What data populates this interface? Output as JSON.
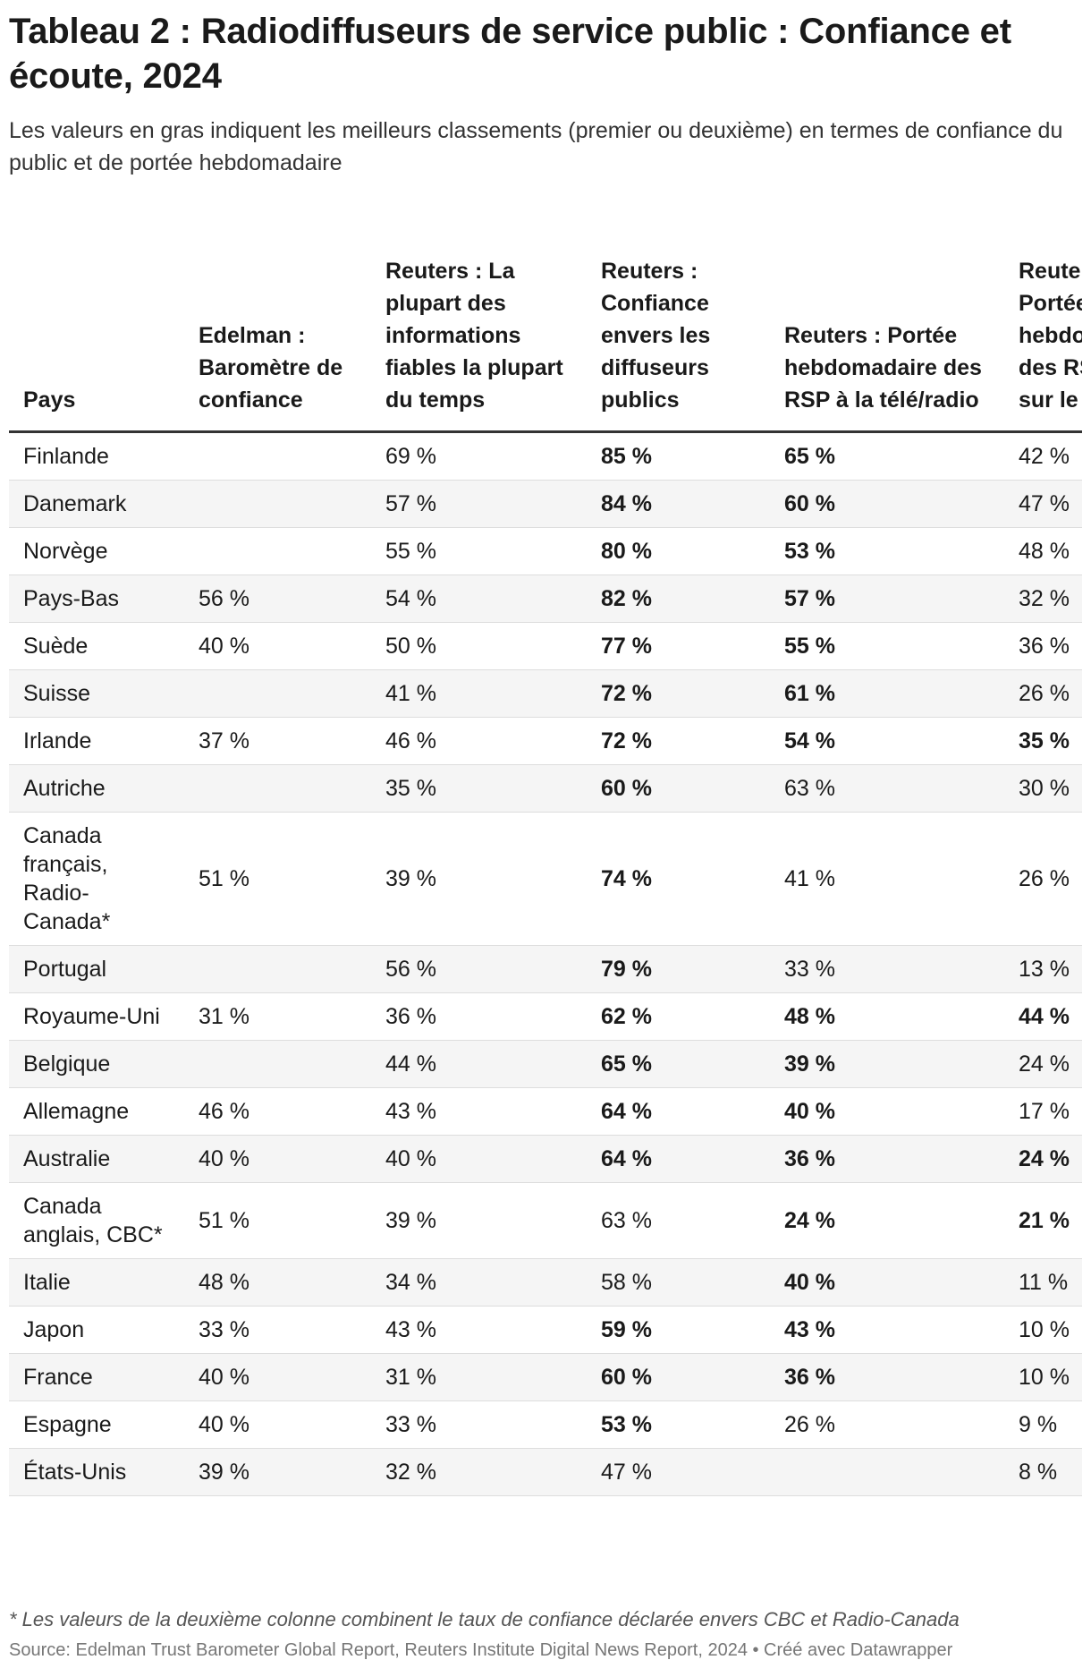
{
  "chart_data": {
    "type": "table",
    "title": "Tableau 2 : Radiodiffuseurs de service public : Confiance et écoute, 2024",
    "subtitle": "Les valeurs en gras indiquent les meilleurs classements (premier ou deuxième) en termes de confiance du public et de portée hebdomadaire",
    "columns": [
      "Pays",
      "Edelman : Baromètre de confiance",
      "Reuters : La plupart des informations fiables la plupart du temps",
      "Reuters : Confiance envers les diffuseurs publics",
      "Reuters : Portée hebdomadaire des RSP à la télé/radio",
      "Reuters : Portée hebdomadaire des RSP sur le Web"
    ],
    "rows": [
      {
        "country": "Finlande",
        "cells": [
          {
            "v": "",
            "b": false
          },
          {
            "v": "69 %",
            "b": false
          },
          {
            "v": "85 %",
            "b": true
          },
          {
            "v": "65 %",
            "b": true
          },
          {
            "v": "42 %",
            "b": false
          }
        ]
      },
      {
        "country": "Danemark",
        "cells": [
          {
            "v": "",
            "b": false
          },
          {
            "v": "57 %",
            "b": false
          },
          {
            "v": "84 %",
            "b": true
          },
          {
            "v": "60 %",
            "b": true
          },
          {
            "v": "47 %",
            "b": false
          }
        ]
      },
      {
        "country": "Norvège",
        "cells": [
          {
            "v": "",
            "b": false
          },
          {
            "v": "55 %",
            "b": false
          },
          {
            "v": "80 %",
            "b": true
          },
          {
            "v": "53 %",
            "b": true
          },
          {
            "v": "48 %",
            "b": false
          }
        ]
      },
      {
        "country": "Pays-Bas",
        "cells": [
          {
            "v": "56 %",
            "b": false
          },
          {
            "v": "54 %",
            "b": false
          },
          {
            "v": "82 %",
            "b": true
          },
          {
            "v": "57 %",
            "b": true
          },
          {
            "v": "32 %",
            "b": false
          }
        ]
      },
      {
        "country": "Suède",
        "cells": [
          {
            "v": "40 %",
            "b": false
          },
          {
            "v": "50 %",
            "b": false
          },
          {
            "v": "77 %",
            "b": true
          },
          {
            "v": "55 %",
            "b": true
          },
          {
            "v": "36 %",
            "b": false
          }
        ]
      },
      {
        "country": "Suisse",
        "cells": [
          {
            "v": "",
            "b": false
          },
          {
            "v": "41 %",
            "b": false
          },
          {
            "v": "72 %",
            "b": true
          },
          {
            "v": "61 %",
            "b": true
          },
          {
            "v": "26 %",
            "b": false
          }
        ]
      },
      {
        "country": "Irlande",
        "cells": [
          {
            "v": "37 %",
            "b": false
          },
          {
            "v": "46 %",
            "b": false
          },
          {
            "v": "72 %",
            "b": true
          },
          {
            "v": "54 %",
            "b": true
          },
          {
            "v": "35 %",
            "b": true
          }
        ]
      },
      {
        "country": "Autriche",
        "cells": [
          {
            "v": "",
            "b": false
          },
          {
            "v": "35 %",
            "b": false
          },
          {
            "v": "60 %",
            "b": true
          },
          {
            "v": "63 %",
            "b": false
          },
          {
            "v": "30 %",
            "b": false
          }
        ]
      },
      {
        "country": "Canada français, Radio-Canada*",
        "cells": [
          {
            "v": "51 %",
            "b": false
          },
          {
            "v": "39 %",
            "b": false
          },
          {
            "v": "74 %",
            "b": true
          },
          {
            "v": "41 %",
            "b": false
          },
          {
            "v": "26 %",
            "b": false
          }
        ]
      },
      {
        "country": "Portugal",
        "cells": [
          {
            "v": "",
            "b": false
          },
          {
            "v": "56 %",
            "b": false
          },
          {
            "v": "79 %",
            "b": true
          },
          {
            "v": "33 %",
            "b": false
          },
          {
            "v": "13 %",
            "b": false
          }
        ]
      },
      {
        "country": "Royaume-Uni",
        "cells": [
          {
            "v": "31 %",
            "b": false
          },
          {
            "v": "36 %",
            "b": false
          },
          {
            "v": "62 %",
            "b": true
          },
          {
            "v": "48 %",
            "b": true
          },
          {
            "v": "44 %",
            "b": true
          }
        ]
      },
      {
        "country": "Belgique",
        "cells": [
          {
            "v": "",
            "b": false
          },
          {
            "v": "44 %",
            "b": false
          },
          {
            "v": "65 %",
            "b": true
          },
          {
            "v": "39 %",
            "b": true
          },
          {
            "v": "24 %",
            "b": false
          }
        ]
      },
      {
        "country": "Allemagne",
        "cells": [
          {
            "v": "46 %",
            "b": false
          },
          {
            "v": "43 %",
            "b": false
          },
          {
            "v": "64 %",
            "b": true
          },
          {
            "v": "40 %",
            "b": true
          },
          {
            "v": "17 %",
            "b": false
          }
        ]
      },
      {
        "country": "Australie",
        "cells": [
          {
            "v": "40 %",
            "b": false
          },
          {
            "v": "40 %",
            "b": false
          },
          {
            "v": "64 %",
            "b": true
          },
          {
            "v": "36 %",
            "b": true
          },
          {
            "v": "24 %",
            "b": true
          }
        ]
      },
      {
        "country": "Canada anglais, CBC*",
        "cells": [
          {
            "v": "51 %",
            "b": false
          },
          {
            "v": "39 %",
            "b": false
          },
          {
            "v": "63 %",
            "b": false
          },
          {
            "v": "24 %",
            "b": true
          },
          {
            "v": "21 %",
            "b": true
          }
        ]
      },
      {
        "country": "Italie",
        "cells": [
          {
            "v": "48 %",
            "b": false
          },
          {
            "v": "34 %",
            "b": false
          },
          {
            "v": "58 %",
            "b": false
          },
          {
            "v": "40 %",
            "b": true
          },
          {
            "v": "11 %",
            "b": false
          }
        ]
      },
      {
        "country": "Japon",
        "cells": [
          {
            "v": "33 %",
            "b": false
          },
          {
            "v": "43 %",
            "b": false
          },
          {
            "v": "59 %",
            "b": true
          },
          {
            "v": "43 %",
            "b": true
          },
          {
            "v": "10 %",
            "b": false
          }
        ]
      },
      {
        "country": "France",
        "cells": [
          {
            "v": "40 %",
            "b": false
          },
          {
            "v": "31 %",
            "b": false
          },
          {
            "v": "60 %",
            "b": true
          },
          {
            "v": "36 %",
            "b": true
          },
          {
            "v": "10 %",
            "b": false
          }
        ]
      },
      {
        "country": "Espagne",
        "cells": [
          {
            "v": "40 %",
            "b": false
          },
          {
            "v": "33 %",
            "b": false
          },
          {
            "v": "53 %",
            "b": true
          },
          {
            "v": "26 %",
            "b": false
          },
          {
            "v": "9 %",
            "b": false
          }
        ]
      },
      {
        "country": "États-Unis",
        "cells": [
          {
            "v": "39 %",
            "b": false
          },
          {
            "v": "32 %",
            "b": false
          },
          {
            "v": "47 %",
            "b": false
          },
          {
            "v": "",
            "b": false
          },
          {
            "v": "8 %",
            "b": false
          }
        ]
      }
    ],
    "footnote": "* Les valeurs de la deuxième colonne combinent le taux de confiance déclarée envers CBC et Radio-Canada",
    "source": "Source: Edelman Trust Barometer Global Report, Reuters Institute Digital News Report, 2024 • Créé avec Datawrapper"
  }
}
